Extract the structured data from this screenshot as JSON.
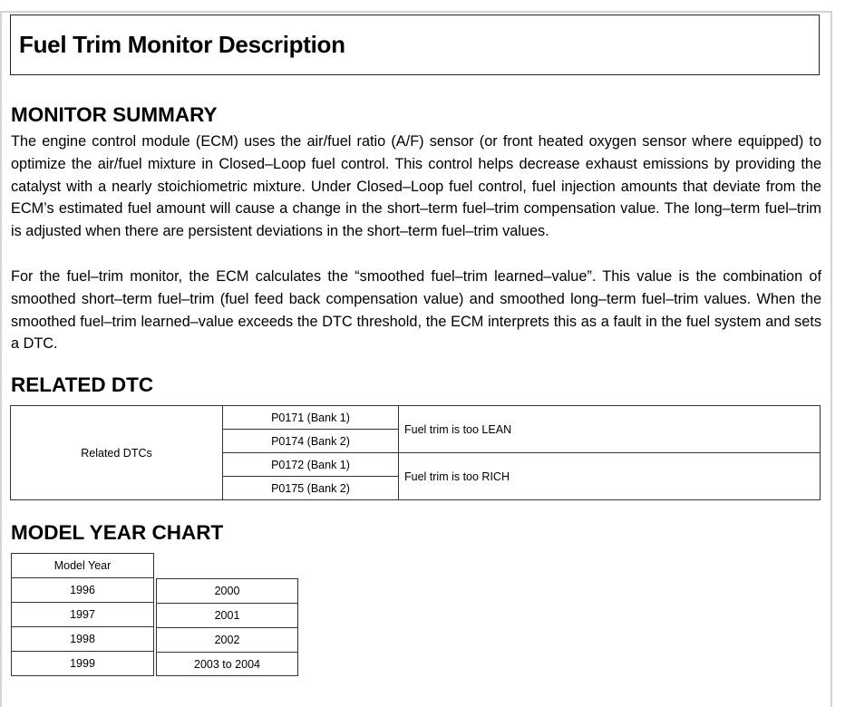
{
  "title": "Fuel Trim Monitor Description",
  "monitor_summary": {
    "heading": "MONITOR SUMMARY",
    "paragraphs": [
      "The engine control module (ECM) uses the air/fuel ratio (A/F) sensor (or front heated oxygen sensor where equipped) to optimize the air/fuel mixture in Closed–Loop fuel control. This control helps decrease exhaust emissions by providing the catalyst with a nearly stoichiometric mixture. Under Closed–Loop fuel control, fuel injection amounts that deviate from the ECM’s estimated fuel amount will cause a change in the short–term fuel–trim compensation value. The long–term fuel–trim is adjusted when there are persistent deviations in the short–term fuel–trim values.",
      "For the fuel–trim monitor, the ECM calculates the “smoothed fuel–trim learned–value”. This value is the combination of smoothed short–term fuel–trim (fuel feed back compensation value) and smoothed long–term fuel–trim values. When the smoothed fuel–trim learned–value exceeds the DTC threshold, the ECM interprets this as a fault in the fuel system and sets a DTC."
    ]
  },
  "related_dtc": {
    "heading": "RELATED DTC",
    "row_label": "Related DTCs",
    "codes": [
      "P0171 (Bank 1)",
      "P0174 (Bank 2)",
      "P0172 (Bank 1)",
      "P0175 (Bank 2)"
    ],
    "descriptions": [
      "Fuel trim is too LEAN",
      "Fuel trim is too RICH"
    ]
  },
  "model_year_chart": {
    "heading": "MODEL YEAR CHART",
    "header": "Model Year",
    "left": [
      "1996",
      "1997",
      "1998",
      "1999"
    ],
    "right": [
      "2000",
      "2001",
      "2002",
      "2003 to 2004"
    ]
  }
}
